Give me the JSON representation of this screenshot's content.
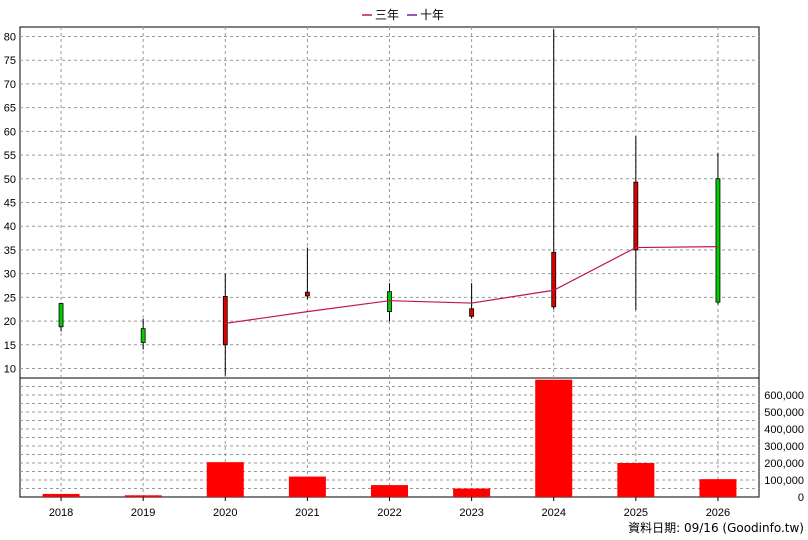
{
  "legend": [
    {
      "name": "三年",
      "color": "#c0145a"
    },
    {
      "name": "十年",
      "color": "#7b1fa2"
    }
  ],
  "credit": "資料日期: 09/16  (Goodinfo.tw)",
  "chart_data": [
    {
      "type": "candlestick",
      "categories": [
        "2018",
        "2019",
        "2020",
        "2021",
        "2022",
        "2023",
        "2024",
        "2025",
        "2026"
      ],
      "ylim": [
        8,
        82
      ],
      "yticks": [
        "10",
        "15",
        "20",
        "25",
        "30",
        "35",
        "40",
        "45",
        "50",
        "55",
        "60",
        "65",
        "70",
        "75",
        "80"
      ],
      "grid": true,
      "up_color": "#00cc00",
      "down_color": "#dd0000",
      "candles": [
        {
          "x": "2018",
          "open": 18.8,
          "close": 23.7,
          "high": 23.9,
          "low": 17.8
        },
        {
          "x": "2019",
          "open": 15.5,
          "close": 18.4,
          "high": 20.5,
          "low": 14.0
        },
        {
          "x": "2020",
          "open": 25.2,
          "close": 15.0,
          "high": 30.0,
          "low": 8.5
        },
        {
          "x": "2021",
          "open": 26.1,
          "close": 25.3,
          "high": 35.5,
          "low": 24.6
        },
        {
          "x": "2022",
          "open": 22.0,
          "close": 26.2,
          "high": 28.0,
          "low": 20.0
        },
        {
          "x": "2023",
          "open": 22.6,
          "close": 21.0,
          "high": 28.0,
          "low": 20.5
        },
        {
          "x": "2024",
          "open": 34.5,
          "close": 23.0,
          "high": 81.5,
          "low": 22.5
        },
        {
          "x": "2025",
          "open": 49.3,
          "close": 35.0,
          "high": 59.0,
          "low": 22.3
        },
        {
          "x": "2026",
          "open": 24.0,
          "close": 50.0,
          "high": 55.5,
          "low": 23.5
        }
      ],
      "series": [
        {
          "name": "三年",
          "x": [
            "2020",
            "2021",
            "2022",
            "2023",
            "2024",
            "2025",
            "2026"
          ],
          "values": [
            19.5,
            22.0,
            24.3,
            23.8,
            26.5,
            35.5,
            35.7
          ]
        }
      ]
    },
    {
      "type": "bar",
      "categories": [
        "2018",
        "2019",
        "2020",
        "2021",
        "2022",
        "2023",
        "2024",
        "2025",
        "2026"
      ],
      "values": [
        18000,
        10000,
        205000,
        120000,
        70000,
        50000,
        690000,
        200000,
        105000
      ],
      "ylim": [
        0,
        700000
      ],
      "yticks": [
        "0",
        "100,000",
        "200,000",
        "300,000",
        "400,000",
        "500,000",
        "600,000"
      ],
      "bar_color": "#ff0000",
      "grid": true
    }
  ]
}
